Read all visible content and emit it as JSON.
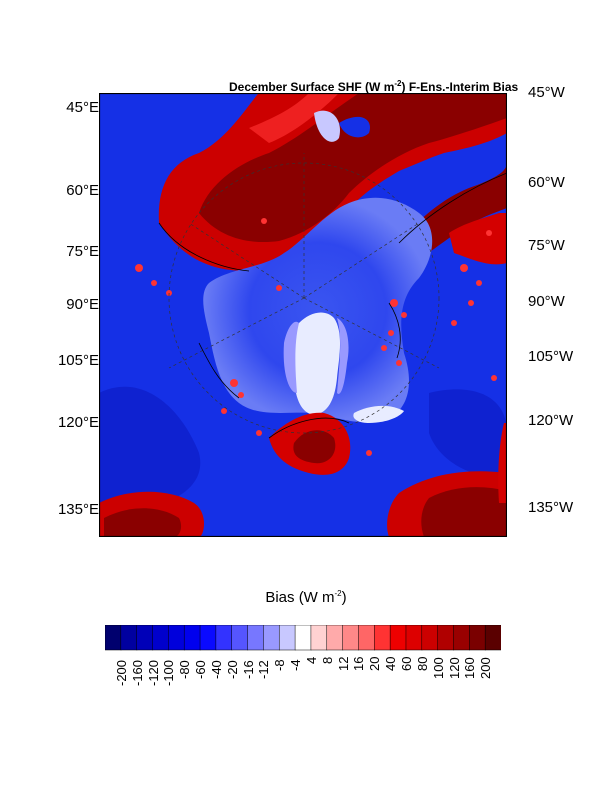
{
  "figure": {
    "title_main": "December Surface SHF (W m",
    "title_sup": "-2",
    "title_tail": ") F-Ens.-Interim Bias"
  },
  "axis_labels": {
    "left": [
      "45°E",
      "60°E",
      "75°E",
      "90°E",
      "105°E",
      "120°E",
      "135°E"
    ],
    "right": [
      "45°W",
      "60°W",
      "75°W",
      "90°W",
      "105°W",
      "120°W",
      "135°W"
    ]
  },
  "colorbar": {
    "title_main": "Bias (W m",
    "title_sup": "-2",
    "title_tail": ")",
    "ticks": [
      "-200",
      "-160",
      "-120",
      "-100",
      "-80",
      "-60",
      "-40",
      "-20",
      "-16",
      "-12",
      "-8",
      "-4",
      "4",
      "8",
      "12",
      "16",
      "20",
      "40",
      "60",
      "80",
      "100",
      "120",
      "160",
      "200"
    ],
    "colors": [
      "#00006e",
      "#0000a0",
      "#0000b8",
      "#0000cc",
      "#0000dc",
      "#0000ee",
      "#0a0aff",
      "#3333ff",
      "#5555ff",
      "#7777ff",
      "#9999ff",
      "#c8c8ff",
      "#ffffff",
      "#ffd2d2",
      "#ffaaaa",
      "#ff8888",
      "#ff6666",
      "#ff3333",
      "#ee0000",
      "#dd0000",
      "#cc0000",
      "#b00000",
      "#990000",
      "#7a0000",
      "#5a0000"
    ]
  },
  "colors": {
    "ocean_bias": "#1530e6",
    "warm_bias": "#d40000",
    "warm_bias_dark": "#8a0000",
    "near_zero": "#e8ecff"
  }
}
